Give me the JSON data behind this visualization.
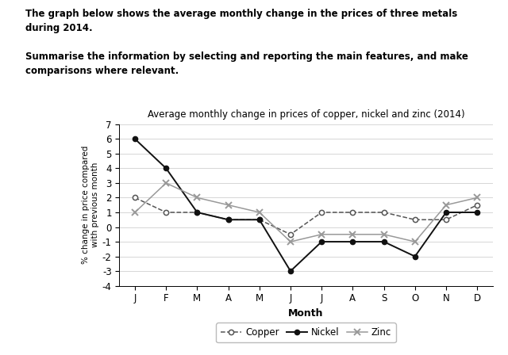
{
  "title": "Average monthly change in prices of copper, nickel and zinc (2014)",
  "xlabel": "Month",
  "ylabel": "% change in price compared\nwith previous month",
  "months": [
    "J",
    "F",
    "M",
    "A",
    "M",
    "J",
    "J",
    "A",
    "S",
    "O",
    "N",
    "D"
  ],
  "copper": [
    2.0,
    1.0,
    1.0,
    0.5,
    0.5,
    -0.5,
    1.0,
    1.0,
    1.0,
    0.5,
    0.5,
    1.5
  ],
  "nickel": [
    6.0,
    4.0,
    1.0,
    0.5,
    0.5,
    -3.0,
    -1.0,
    -1.0,
    -1.0,
    -2.0,
    1.0,
    1.0
  ],
  "zinc": [
    1.0,
    3.0,
    2.0,
    1.5,
    1.0,
    -1.0,
    -0.5,
    -0.5,
    -0.5,
    -1.0,
    1.5,
    2.0
  ],
  "ylim": [
    -4,
    7
  ],
  "yticks": [
    -4,
    -3,
    -2,
    -1,
    0,
    1,
    2,
    3,
    4,
    5,
    6,
    7
  ],
  "header_bold1": "The graph below shows the average monthly change in the prices of three metals\nduring 2014.",
  "header_bold2": "Summarise the information by selecting and reporting the main features, and make\ncomparisons where relevant.",
  "copper_color": "#555555",
  "nickel_color": "#111111",
  "zinc_color": "#999999",
  "background_color": "#ffffff"
}
